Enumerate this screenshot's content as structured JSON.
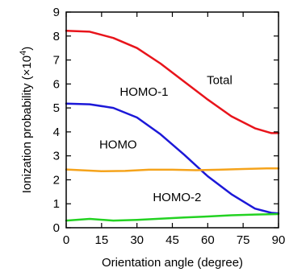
{
  "chart_data": {
    "type": "line",
    "xlabel": "Orientation angle (degree)",
    "ylabel_main": "Ionization probability (×10",
    "ylabel_exp": "4",
    "ylabel_close": ")",
    "xlim": [
      0,
      90
    ],
    "ylim": [
      0,
      9
    ],
    "xticks": [
      0,
      15,
      30,
      45,
      60,
      75,
      90
    ],
    "yticks": [
      0,
      1,
      2,
      3,
      4,
      5,
      6,
      7,
      8,
      9
    ],
    "grid": false,
    "series": [
      {
        "name": "Total",
        "color": "#e8141b",
        "label": {
          "x": 65,
          "y": 6.0
        },
        "points": [
          [
            0,
            8.22
          ],
          [
            10,
            8.18
          ],
          [
            20,
            7.92
          ],
          [
            30,
            7.5
          ],
          [
            40,
            6.85
          ],
          [
            50,
            6.1
          ],
          [
            60,
            5.35
          ],
          [
            70,
            4.65
          ],
          [
            80,
            4.15
          ],
          [
            87,
            3.95
          ],
          [
            90,
            3.95
          ]
        ]
      },
      {
        "name": "HOMO-1",
        "color": "#1c18d8",
        "label": {
          "x": 33,
          "y": 5.5
        },
        "points": [
          [
            0,
            5.18
          ],
          [
            10,
            5.15
          ],
          [
            20,
            5.0
          ],
          [
            30,
            4.6
          ],
          [
            40,
            3.9
          ],
          [
            50,
            3.05
          ],
          [
            60,
            2.15
          ],
          [
            70,
            1.4
          ],
          [
            80,
            0.8
          ],
          [
            87,
            0.62
          ],
          [
            90,
            0.6
          ]
        ]
      },
      {
        "name": "HOMO",
        "color": "#f5a31b",
        "label": {
          "x": 22,
          "y": 3.3
        },
        "points": [
          [
            0,
            2.43
          ],
          [
            15,
            2.36
          ],
          [
            25,
            2.37
          ],
          [
            35,
            2.42
          ],
          [
            45,
            2.42
          ],
          [
            55,
            2.4
          ],
          [
            65,
            2.42
          ],
          [
            75,
            2.45
          ],
          [
            85,
            2.48
          ],
          [
            90,
            2.48
          ]
        ]
      },
      {
        "name": "HOMO-2",
        "color": "#23d222",
        "label": {
          "x": 47,
          "y": 1.1
        },
        "points": [
          [
            0,
            0.3
          ],
          [
            10,
            0.37
          ],
          [
            20,
            0.3
          ],
          [
            30,
            0.33
          ],
          [
            40,
            0.38
          ],
          [
            50,
            0.43
          ],
          [
            60,
            0.47
          ],
          [
            70,
            0.52
          ],
          [
            80,
            0.55
          ],
          [
            90,
            0.57
          ]
        ]
      }
    ]
  }
}
